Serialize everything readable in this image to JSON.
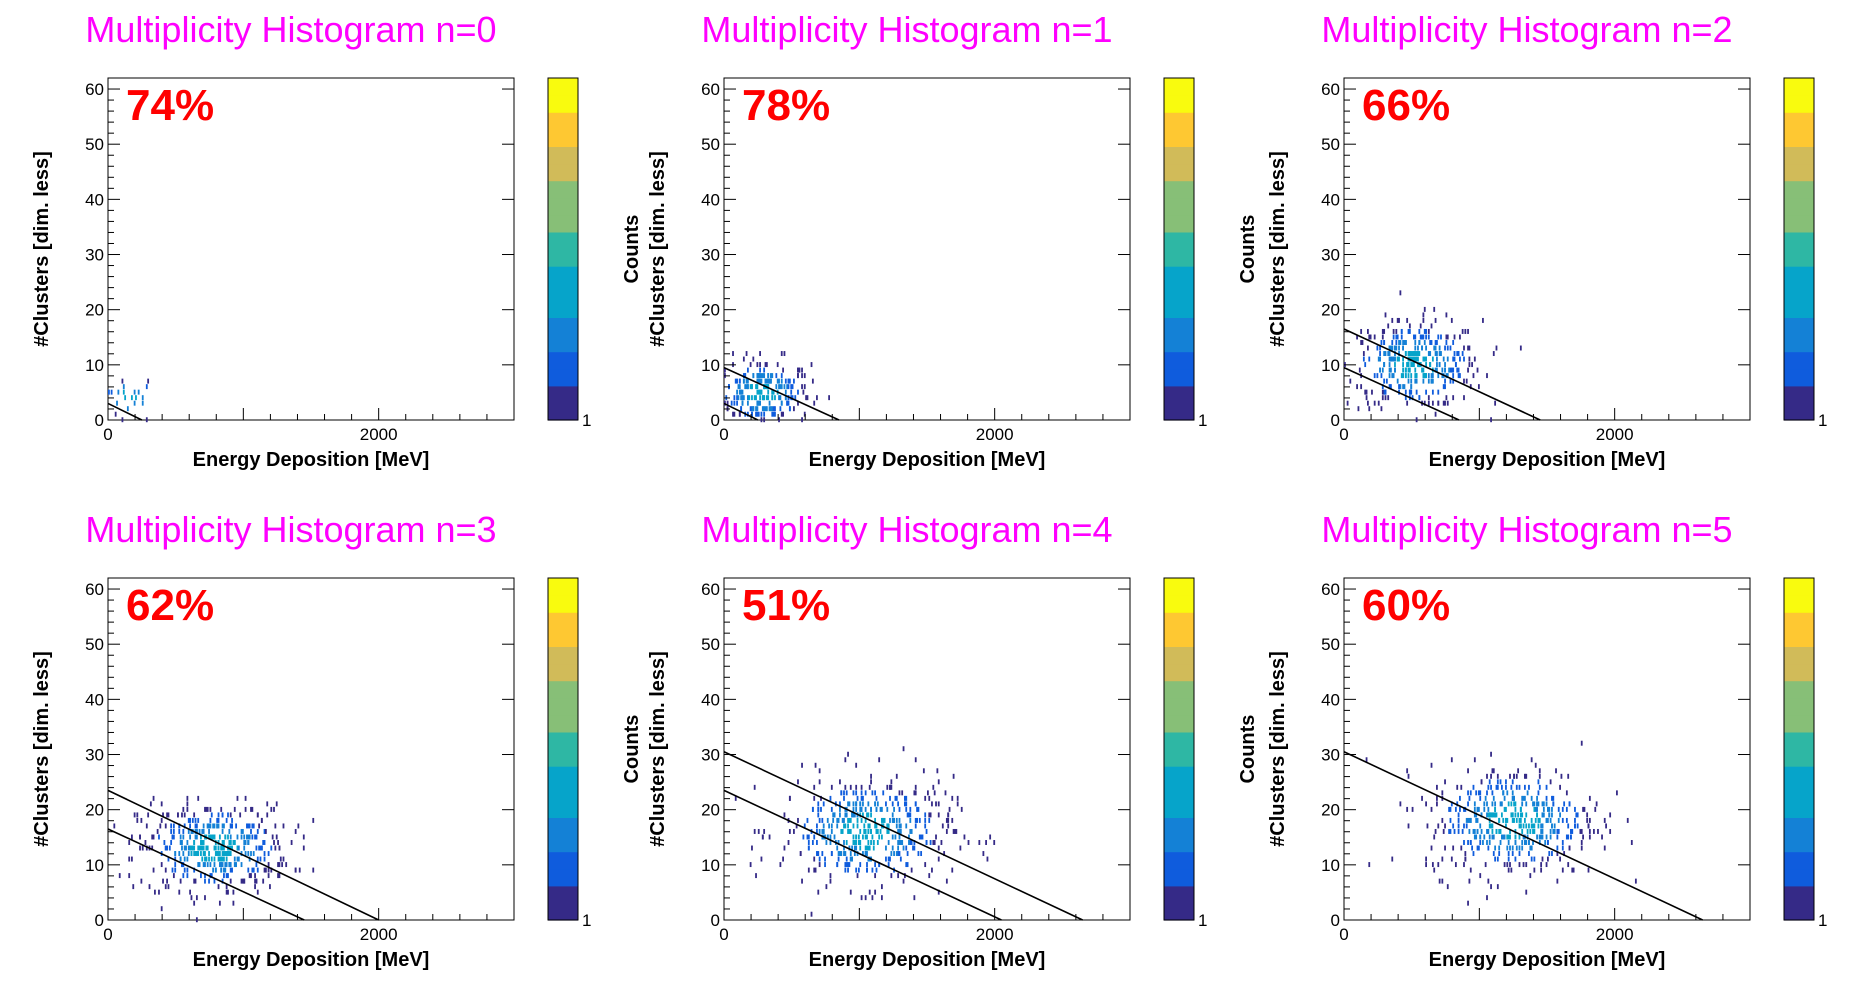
{
  "colors": {
    "title": "#ff00ff",
    "percentage": "#ff0000",
    "palette": [
      "#352a87",
      "#0f5cdd",
      "#1481d6",
      "#06a4ca",
      "#2eb7a4",
      "#87bf77",
      "#d1bb59",
      "#fec832",
      "#f9fb0e"
    ]
  },
  "chart_data": [
    {
      "type": "heatmap",
      "title": "Multiplicity Histogram n=0",
      "annotation": "74%",
      "xlabel": "Energy Deposition [MeV]",
      "ylabel": "#Clusters [dim. less]",
      "xlim": [
        0,
        3000
      ],
      "ylim": [
        0,
        62
      ],
      "x_ticks": [
        "0",
        "2000"
      ],
      "y_ticks": [
        "0",
        "10",
        "20",
        "30",
        "40",
        "50",
        "60"
      ],
      "colorbar_label": "Counts",
      "colorbar_tick": "1",
      "cluster": {
        "center_energy": 150,
        "center_clusters": 4,
        "spread_energy": 120,
        "spread_clusters": 2,
        "count": 25
      },
      "lines": [
        {
          "from": [
            0,
            3
          ],
          "to": [
            250,
            0
          ]
        }
      ]
    },
    {
      "type": "heatmap",
      "title": "Multiplicity Histogram n=1",
      "annotation": "78%",
      "xlabel": "Energy Deposition [MeV]",
      "ylabel": "#Clusters [dim. less]",
      "xlim": [
        0,
        3000
      ],
      "ylim": [
        0,
        62
      ],
      "x_ticks": [
        "0",
        "2000"
      ],
      "y_ticks": [
        "0",
        "10",
        "20",
        "30",
        "40",
        "50",
        "60"
      ],
      "colorbar_label": "Counts",
      "colorbar_tick": "1",
      "cluster": {
        "center_energy": 280,
        "center_clusters": 5,
        "spread_energy": 180,
        "spread_clusters": 3,
        "count": 260
      },
      "lines": [
        {
          "from": [
            0,
            3
          ],
          "to": [
            250,
            0
          ]
        },
        {
          "from": [
            0,
            9.5
          ],
          "to": [
            850,
            0
          ]
        }
      ]
    },
    {
      "type": "heatmap",
      "title": "Multiplicity Histogram n=2",
      "annotation": "66%",
      "xlabel": "Energy Deposition [MeV]",
      "ylabel": "#Clusters [dim. less]",
      "xlim": [
        0,
        3000
      ],
      "ylim": [
        0,
        62
      ],
      "x_ticks": [
        "0",
        "2000"
      ],
      "y_ticks": [
        "0",
        "10",
        "20",
        "30",
        "40",
        "50",
        "60"
      ],
      "colorbar_label": "Counts",
      "colorbar_tick": "1",
      "cluster": {
        "center_energy": 520,
        "center_clusters": 10,
        "spread_energy": 250,
        "spread_clusters": 4,
        "count": 380
      },
      "lines": [
        {
          "from": [
            0,
            9.5
          ],
          "to": [
            850,
            0
          ]
        },
        {
          "from": [
            0,
            16.5
          ],
          "to": [
            1450,
            0
          ]
        }
      ]
    },
    {
      "type": "heatmap",
      "title": "Multiplicity Histogram n=3",
      "annotation": "62%",
      "xlabel": "Energy Deposition [MeV]",
      "ylabel": "#Clusters [dim. less]",
      "xlim": [
        0,
        3000
      ],
      "ylim": [
        0,
        62
      ],
      "x_ticks": [
        "0",
        "2000"
      ],
      "y_ticks": [
        "0",
        "10",
        "20",
        "30",
        "40",
        "50",
        "60"
      ],
      "colorbar_label": "Counts",
      "colorbar_tick": "1",
      "cluster": {
        "center_energy": 780,
        "center_clusters": 13,
        "spread_energy": 280,
        "spread_clusters": 4,
        "count": 450
      },
      "lines": [
        {
          "from": [
            0,
            16.5
          ],
          "to": [
            1450,
            0
          ]
        },
        {
          "from": [
            0,
            23.5
          ],
          "to": [
            2000,
            0
          ]
        }
      ]
    },
    {
      "type": "heatmap",
      "title": "Multiplicity Histogram n=4",
      "annotation": "51%",
      "xlabel": "Energy Deposition [MeV]",
      "ylabel": "#Clusters [dim. less]",
      "xlim": [
        0,
        3000
      ],
      "ylim": [
        0,
        62
      ],
      "x_ticks": [
        "0",
        "2000"
      ],
      "y_ticks": [
        "0",
        "10",
        "20",
        "30",
        "40",
        "50",
        "60"
      ],
      "colorbar_label": "Counts",
      "colorbar_tick": "1",
      "cluster": {
        "center_energy": 1050,
        "center_clusters": 16,
        "spread_energy": 320,
        "spread_clusters": 5,
        "count": 480
      },
      "lines": [
        {
          "from": [
            0,
            23.5
          ],
          "to": [
            2050,
            0
          ]
        },
        {
          "from": [
            0,
            30.5
          ],
          "to": [
            2650,
            0
          ]
        }
      ]
    },
    {
      "type": "heatmap",
      "title": "Multiplicity Histogram n=5",
      "annotation": "60%",
      "xlabel": "Energy Deposition [MeV]",
      "ylabel": "#Clusters [dim. less]",
      "xlim": [
        0,
        3000
      ],
      "ylim": [
        0,
        62
      ],
      "x_ticks": [
        "0",
        "2000"
      ],
      "y_ticks": [
        "0",
        "10",
        "20",
        "30",
        "40",
        "50",
        "60"
      ],
      "colorbar_label": "Counts",
      "colorbar_tick": "1",
      "cluster": {
        "center_energy": 1250,
        "center_clusters": 18,
        "spread_energy": 320,
        "spread_clusters": 5,
        "count": 480
      },
      "lines": [
        {
          "from": [
            0,
            30.5
          ],
          "to": [
            2650,
            0
          ]
        }
      ]
    }
  ]
}
